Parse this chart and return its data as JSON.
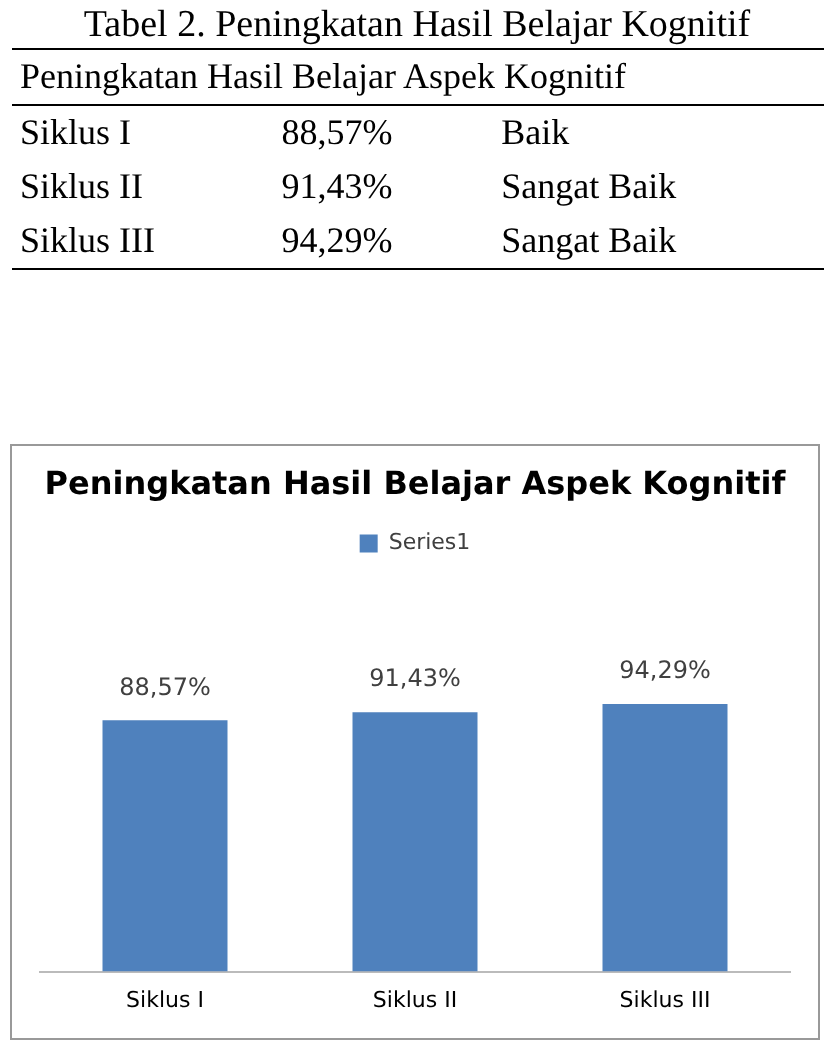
{
  "chart_data": [
    {
      "type": "other",
      "title": "Tabel 2. Peningkatan Hasil Belajar Kognitif",
      "annotations": [
        "Peningkatan Hasil Belajar Aspek Kognitif",
        "Siklus I",
        "88,57%",
        "Baik",
        "Siklus II",
        "91,43%",
        "Sangat Baik",
        "Siklus III",
        "94,29%",
        "Sangat Baik"
      ]
    },
    {
      "type": "bar",
      "title": "Peningkatan Hasil Belajar Aspek Kognitif",
      "categories": [
        "Siklus I",
        "Siklus II",
        "Siklus III"
      ],
      "series": [
        {
          "name": "Series1",
          "color": "#4f81bd",
          "values": [
            88.57,
            91.43,
            94.29
          ],
          "value_labels": [
            "88,57%",
            "91,43%",
            "94,29%"
          ]
        }
      ],
      "tick_labels": "x",
      "grid": false,
      "legend": "top"
    }
  ]
}
